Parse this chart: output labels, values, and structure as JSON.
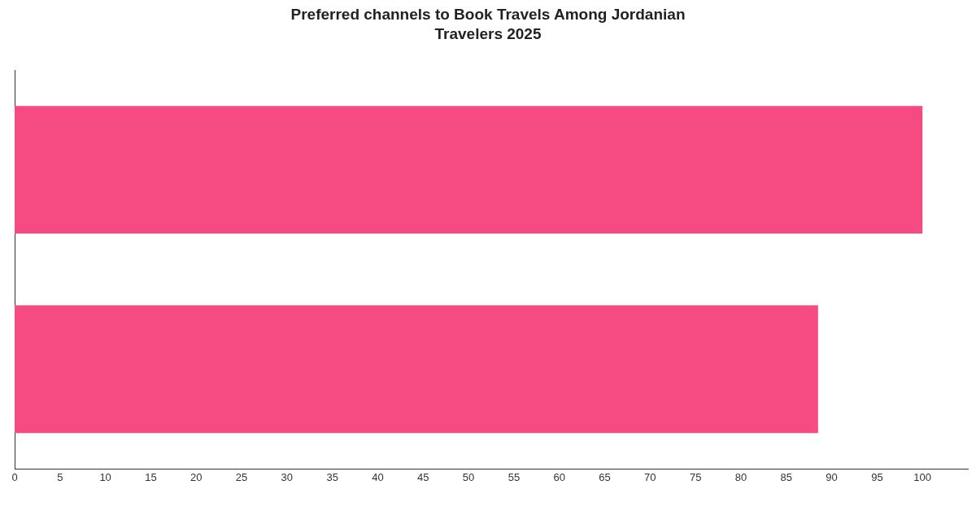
{
  "chart_data": {
    "type": "bar",
    "orientation": "horizontal",
    "title": "Preferred channels to Book Travels Among Jordanian Travelers 2025",
    "categories": [
      null,
      null
    ],
    "values": [
      100,
      88.5
    ],
    "color": "#f64a82",
    "xlim": [
      0,
      105
    ],
    "xticks": [
      0,
      5,
      10,
      15,
      20,
      25,
      30,
      35,
      40,
      45,
      50,
      55,
      60,
      65,
      70,
      75,
      80,
      85,
      90,
      95,
      100
    ],
    "tick_labels": "x",
    "grid": false,
    "legend": false
  }
}
